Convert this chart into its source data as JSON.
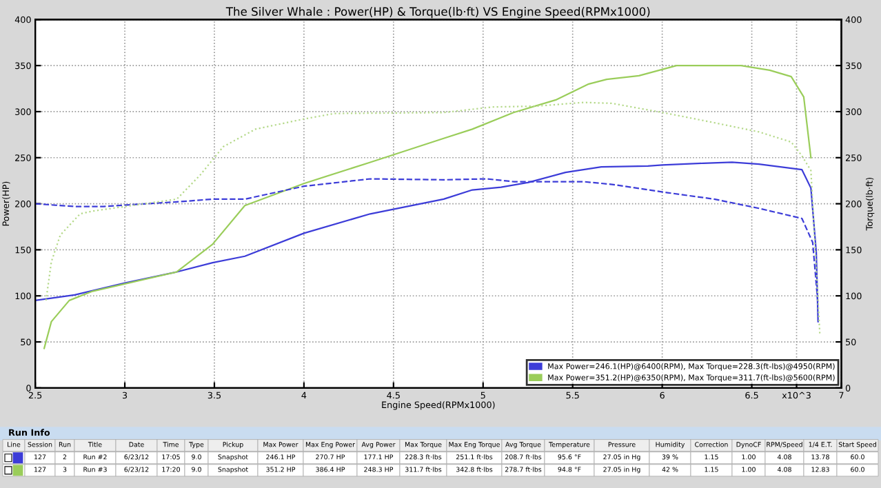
{
  "chart_data": [
    {
      "type": "line",
      "title": "The Silver Whale : Power(HP) & Torque(lb·ft) VS Engine Speed(RPMx1000)",
      "xlabel": "Engine Speed(RPMx1000)",
      "ylabel": "Power(HP)",
      "y2label": "Torque(lb·ft)",
      "xlim": [
        2.5,
        7
      ],
      "xticks": [
        2.5,
        3,
        3.5,
        4,
        4.5,
        5,
        5.5,
        6,
        6.5,
        {
          "value": 6.75,
          "label": "x10^3"
        },
        7
      ],
      "ylim": [
        0,
        400
      ],
      "yticks": [
        0,
        50,
        100,
        150,
        200,
        250,
        300,
        350,
        400
      ],
      "y2lim": [
        0,
        400
      ],
      "y2ticks": [
        0,
        50,
        100,
        150,
        200,
        250,
        300,
        350,
        400
      ],
      "grid": true,
      "legend": "bottom right",
      "series": [
        {
          "name": "Max Power=246.1(HP)@6400(RPM), Max Torque=228.3(ft-lbs)@4950(RPM)",
          "color": "#3c3cd8",
          "line_style": "solid",
          "x": [
            2.5,
            2.72,
            3.0,
            3.29,
            3.49,
            3.67,
            4.0,
            4.37,
            4.78,
            4.94,
            5.1,
            5.25,
            5.46,
            5.66,
            5.92,
            6.0,
            6.23,
            6.39,
            6.54,
            6.78,
            6.83,
            6.86,
            6.87
          ],
          "values": [
            95,
            101,
            114,
            126,
            136,
            143,
            168,
            189,
            205,
            215,
            218,
            223,
            234,
            240,
            241,
            242,
            244,
            245,
            243,
            237,
            217,
            147,
            72
          ]
        },
        {
          "name": "Max Power=351.2(HP)@6350(RPM), Max Torque=311.7(ft-lbs)@5600(RPM)",
          "color": "#9acd5a",
          "line_style": "solid",
          "x": [
            2.55,
            2.59,
            2.69,
            2.82,
            3.29,
            3.49,
            3.67,
            4.0,
            4.37,
            4.78,
            4.94,
            5.17,
            5.41,
            5.59,
            5.69,
            5.87,
            6.08,
            6.44,
            6.6,
            6.72,
            6.79,
            6.83
          ],
          "values": [
            43,
            72,
            95,
            105,
            126,
            156,
            198,
            222,
            245,
            271,
            281,
            299,
            313,
            330,
            335,
            339,
            350,
            350,
            345,
            338,
            316,
            250
          ]
        },
        {
          "color": "#3c3cd8",
          "line_style": "dashed",
          "axis": "y2",
          "x": [
            2.5,
            2.72,
            2.88,
            3.29,
            3.49,
            3.67,
            4.0,
            4.37,
            4.78,
            5.02,
            5.17,
            5.56,
            5.72,
            6.03,
            6.29,
            6.54,
            6.78,
            6.84,
            6.87
          ],
          "values": [
            200,
            197,
            197,
            202,
            205,
            205,
            219,
            227,
            226,
            227,
            224,
            224,
            221,
            212,
            205,
            195,
            184,
            158,
            90
          ]
        },
        {
          "color": "#b5d98a",
          "line_style": "dotted",
          "axis": "y2",
          "x": [
            2.56,
            2.59,
            2.64,
            2.75,
            2.82,
            3.29,
            3.42,
            3.55,
            3.73,
            4.0,
            4.17,
            4.78,
            5.05,
            5.3,
            5.56,
            5.72,
            6.03,
            6.29,
            6.54,
            6.72,
            6.78,
            6.83,
            6.88
          ],
          "values": [
            95,
            137,
            166,
            189,
            192,
            205,
            231,
            262,
            281,
            292,
            298,
            299,
            305,
            306,
            310,
            309,
            298,
            288,
            278,
            267,
            252,
            236,
            58
          ]
        }
      ]
    },
    {
      "type": "other",
      "title": "Run Info",
      "categories": [
        "Line",
        "Session",
        "Run",
        "Title",
        "Date",
        "Time",
        "Type",
        "Pickup",
        "Max Power",
        "Max Eng Power",
        "Avg Power",
        "Max Torque",
        "Max Eng Torque",
        "Avg Torque",
        "Temperature",
        "Pressure",
        "Humidity",
        "Correction",
        "DynoCF",
        "RPM/Speed",
        "1/4 E.T.",
        "Start Speed"
      ],
      "annotations": [
        [
          "127",
          "2",
          "Run #2",
          "6/23/12",
          "17:05",
          "9.0",
          "Snapshot",
          "246.1 HP",
          "270.7 HP",
          "177.1 HP",
          "228.3 ft·lbs",
          "251.1 ft·lbs",
          "208.7 ft·lbs",
          "95.6 °F",
          "27.05 in Hg",
          "39 %",
          "1.15",
          "1.00",
          "4.08",
          "13.78",
          "60.0"
        ],
        [
          "127",
          "3",
          "Run #3",
          "6/23/12",
          "17:20",
          "9.0",
          "Snapshot",
          "351.2 HP",
          "386.4 HP",
          "248.3 HP",
          "311.7 ft·lbs",
          "342.8 ft·lbs",
          "278.7 ft·lbs",
          "94.8 °F",
          "27.05 in Hg",
          "42 %",
          "1.15",
          "1.00",
          "4.08",
          "12.83",
          "60.0"
        ]
      ]
    }
  ]
}
